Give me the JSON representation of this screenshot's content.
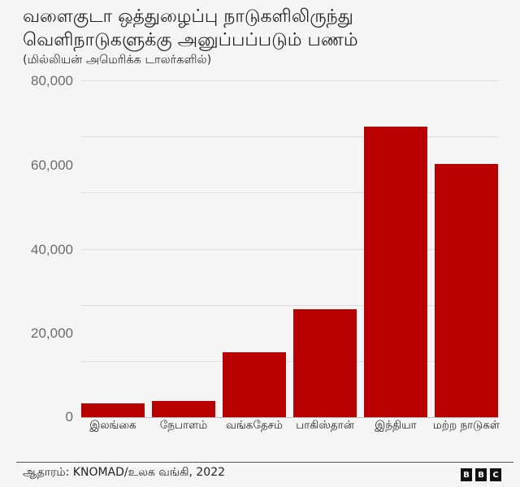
{
  "header": {
    "title_line1": "வளைகுடா ஒத்துழைப்பு நாடுகளிலிருந்து",
    "title_line2": "வெளிநாடுகளுக்கு அனுப்பப்படும் பணம்",
    "subtitle": "(மில்லியன் அமெரிக்க டாலர்களில்)"
  },
  "axis": {
    "y_ticks": [
      "80,000",
      "60,000",
      "40,000",
      "20,000",
      "0"
    ]
  },
  "bars": [
    {
      "label": "இலங்கை",
      "value": 3300
    },
    {
      "label": "நேபாளம்",
      "value": 3900
    },
    {
      "label": "வங்கதேசம்",
      "value": 15400
    },
    {
      "label": "பாகிஸ்தான்",
      "value": 25600
    },
    {
      "label": "இந்தியா",
      "value": 69000
    },
    {
      "label": "மற்ற நாடுகள்",
      "value": 60200
    }
  ],
  "footer": {
    "source": "ஆதாரம்: KNOMAD/உலக வங்கி, 2022",
    "logo_letters": [
      "B",
      "B",
      "C"
    ]
  },
  "colors": {
    "bar": "#b80000",
    "background": "#f5f5f5"
  },
  "chart_data": {
    "type": "bar",
    "title": "வளைகுடா ஒத்துழைப்பு நாடுகளிலிருந்து வெளிநாடுகளுக்கு அனுப்பப்படும் பணம்",
    "subtitle": "(மில்லியன் அமெரிக்க டாலர்களில்)",
    "categories": [
      "இலங்கை",
      "நேபாளம்",
      "வங்கதேசம்",
      "பாகிஸ்தான்",
      "இந்தியா",
      "மற்ற நாடுகள்"
    ],
    "values": [
      3300,
      3900,
      15400,
      25600,
      69000,
      60200
    ],
    "xlabel": "",
    "ylabel": "",
    "ylim": [
      0,
      80000
    ],
    "y_ticks": [
      0,
      20000,
      40000,
      60000,
      80000
    ],
    "grid": true,
    "legend": "none",
    "source": "ஆதாரம்: KNOMAD/உலக வங்கி, 2022"
  }
}
